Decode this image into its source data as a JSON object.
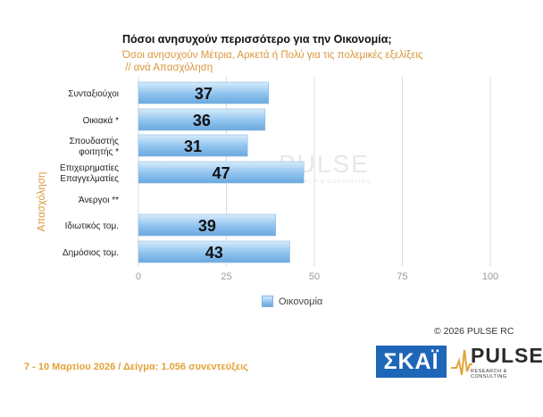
{
  "chart_data": {
    "type": "bar",
    "orientation": "horizontal",
    "title": "Πόσοι ανησυχούν περισσότερο για την Οικονομία;",
    "subtitle_lines": [
      "Όσοι ανησυχούν Μέτρια, Αρκετά ή Πολύ για τις πολεμικές εξελίξεις",
      " // ανά Απασχόληση"
    ],
    "ylabel": "Απασχόληση",
    "categories": [
      [
        "Συνταξιούχοι"
      ],
      [
        "Οικιακά *"
      ],
      [
        "Σπουδαστής",
        "φοιτητής *"
      ],
      [
        "Επιχειρηματίες",
        "Επαγγελματίες"
      ],
      [
        "Άνεργοι **"
      ],
      [
        "Ιδιωτικός τομ."
      ],
      [
        "Δημόσιος τομ."
      ]
    ],
    "series": [
      {
        "name": "Οικονομία",
        "values": [
          37,
          36,
          31,
          47,
          null,
          39,
          43
        ]
      }
    ],
    "xlim": [
      0,
      100
    ],
    "xticks": [
      0,
      25,
      50,
      75,
      100
    ],
    "grid": true,
    "legend": "bottom",
    "colors": {
      "bar_top": "#d6ebfb",
      "bar_mid": "#8fc3ee",
      "bar_bottom": "#6aa8de",
      "accent": "#d9963a"
    }
  },
  "watermark": {
    "text": "PULSE",
    "sub": "RESEARCH & CONSULTING"
  },
  "copyright": "© 2026 PULSE RC",
  "footer": "7 - 10 Μαρτίου 2026 / Δείγμα: 1.056 συνεντεύξεις",
  "logos": {
    "skai": "ΣΚΑΪ",
    "pulse": "PULSE",
    "pulse_sub": "RESEARCH & CONSULTING"
  }
}
